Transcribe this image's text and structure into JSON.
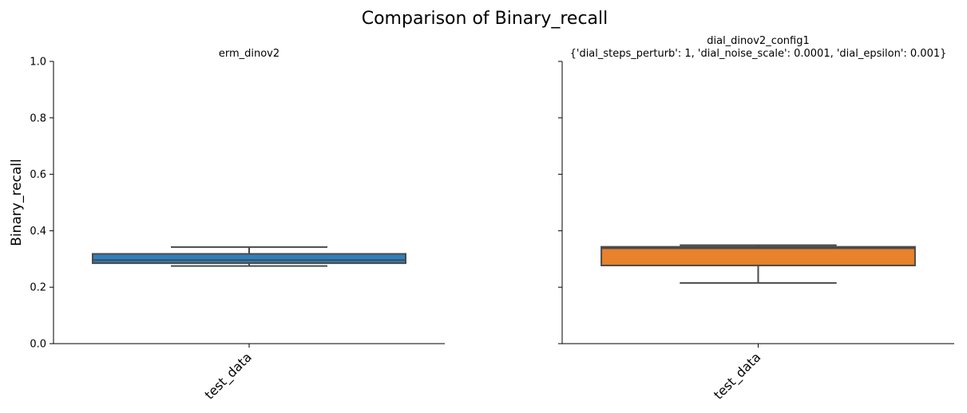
{
  "figure": {
    "suptitle": "Comparison of Binary_recall"
  },
  "chart_data": [
    {
      "type": "box",
      "title": "erm_dinov2",
      "xlabel": "",
      "ylabel": "Binary_recall",
      "categories": [
        "test_data"
      ],
      "ylim": [
        0,
        1.0
      ],
      "yticks": [
        "0.0",
        "0.2",
        "0.4",
        "0.6",
        "0.8",
        "1.0"
      ],
      "color": "#2f7fbd",
      "boxes": [
        {
          "category": "test_data",
          "whisker_low": 0.275,
          "q1": 0.285,
          "median": 0.296,
          "q3": 0.318,
          "whisker_high": 0.342
        }
      ]
    },
    {
      "type": "box",
      "title": "dial_dinov2_config1\n{'dial_steps_perturb': 1, 'dial_noise_scale': 0.0001, 'dial_epsilon': 0.001}",
      "xlabel": "",
      "ylabel": "",
      "categories": [
        "test_data"
      ],
      "ylim": [
        0,
        1.0
      ],
      "yticks": [
        "0.0",
        "0.2",
        "0.4",
        "0.6",
        "0.8",
        "1.0"
      ],
      "color": "#e8822c",
      "boxes": [
        {
          "category": "test_data",
          "whisker_low": 0.215,
          "q1": 0.277,
          "median": 0.338,
          "q3": 0.343,
          "whisker_high": 0.349
        }
      ]
    }
  ]
}
